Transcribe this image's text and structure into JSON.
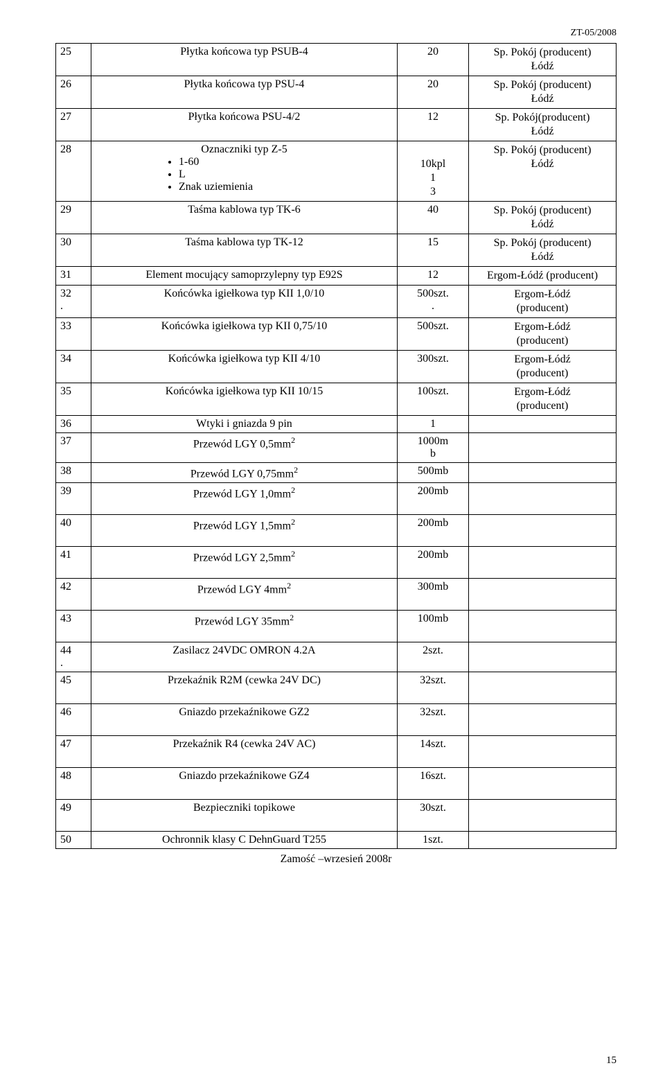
{
  "doc_header": "ZT-05/2008",
  "footer_text": "Zamość –wrzesień 2008r",
  "page_number": "15",
  "rows": [
    {
      "num": "25",
      "desc": "Płytka końcowa typ PSUB-4",
      "qty": "20",
      "sup": "Sp. Pokój (producent)\nŁódź"
    },
    {
      "num": "26",
      "desc": "Płytka końcowa typ PSU-4",
      "qty": "20",
      "sup": "Sp. Pokój (producent)\nŁódź"
    },
    {
      "num": "27",
      "desc": "Płytka końcowa PSU-4/2",
      "qty": "12",
      "sup": "Sp. Pokój(producent)\nŁódź"
    },
    {
      "num": "28",
      "desc_title": "Oznaczniki typ Z-5",
      "bullets": [
        "1-60",
        "L",
        "Znak uziemienia"
      ],
      "qty_stack": [
        "",
        "10kpl",
        "1",
        "3"
      ],
      "sup": "Sp. Pokój (producent)\nŁódź"
    },
    {
      "num": "29",
      "desc": "Taśma kablowa typ TK-6",
      "qty": "40",
      "sup": "Sp. Pokój (producent)\nŁódź"
    },
    {
      "num": "30",
      "desc": "Taśma kablowa typ TK-12",
      "qty": "15",
      "sup": "Sp. Pokój (producent)\nŁódź"
    },
    {
      "num": "31",
      "desc": "Element mocujący samoprzylepny typ E92S",
      "qty": "12",
      "sup": "Ergom-Łódź (producent)"
    },
    {
      "num": "32\n.",
      "desc": "Końcówka igiełkowa typ KII 1,0/10",
      "qty": "500szt.\n.",
      "sup": "Ergom-Łódź\n(producent)"
    },
    {
      "num": "33",
      "desc": "Końcówka igiełkowa typ KII 0,75/10",
      "qty": "500szt.",
      "sup": "Ergom-Łódź\n(producent)"
    },
    {
      "num": "34",
      "desc": "Końcówka igiełkowa typ KII  4/10",
      "qty": "300szt.",
      "sup": "Ergom-Łódź\n(producent)"
    },
    {
      "num": "35",
      "desc": "Końcówka igiełkowa typ KII  10/15",
      "qty": "100szt.",
      "sup": "Ergom-Łódź\n(producent)"
    },
    {
      "num": "36",
      "desc": "Wtyki i gniazda 9 pin",
      "qty": "1",
      "sup": ""
    },
    {
      "num": "37",
      "desc_html": "Przewód LGY 0,5mm<sup>2</sup>",
      "qty": "1000m\nb",
      "sup": ""
    },
    {
      "num": "38",
      "desc_html": "Przewód LGY 0,75mm<sup>2</sup>",
      "qty": "500mb",
      "sup": ""
    },
    {
      "num": "39",
      "desc_html": "Przewód LGY 1,0mm<sup>2</sup>",
      "qty": "200mb",
      "sup": "",
      "tall": true
    },
    {
      "num": "40",
      "desc_html": "Przewód LGY 1,5mm<sup>2</sup>",
      "qty": "200mb",
      "sup": "",
      "tall": true
    },
    {
      "num": "41",
      "desc_html": "Przewód LGY 2,5mm<sup>2</sup>",
      "qty": "200mb",
      "sup": "",
      "tall": true
    },
    {
      "num": "42",
      "desc_html": "Przewód LGY 4mm<sup>2</sup>",
      "qty": "300mb",
      "sup": "",
      "tall": true
    },
    {
      "num": "43",
      "desc_html": "Przewód LGY 35mm<sup>2</sup>",
      "qty": "100mb",
      "sup": "",
      "tall": true
    },
    {
      "num": "44\n.",
      "desc": "Zasilacz 24VDC OMRON 4.2A",
      "qty": "2szt.",
      "sup": ""
    },
    {
      "num": "45",
      "desc": "Przekaźnik R2M (cewka 24V DC)",
      "qty": "32szt.",
      "sup": "",
      "tall": true
    },
    {
      "num": "46",
      "desc": "Gniazdo przekaźnikowe GZ2",
      "qty": "32szt.",
      "sup": "",
      "tall": true
    },
    {
      "num": "47",
      "desc": "Przekaźnik R4 (cewka 24V AC)",
      "qty": "14szt.",
      "sup": "",
      "tall": true
    },
    {
      "num": "48",
      "desc": "Gniazdo przekaźnikowe GZ4",
      "qty": "16szt.",
      "sup": "",
      "tall": true
    },
    {
      "num": "49",
      "desc": "Bezpieczniki topikowe",
      "qty": "30szt.",
      "sup": "",
      "tall": true
    },
    {
      "num": "50",
      "desc": "Ochronnik klasy  C  DehnGuard T255",
      "qty": "1szt.",
      "sup": ""
    }
  ]
}
